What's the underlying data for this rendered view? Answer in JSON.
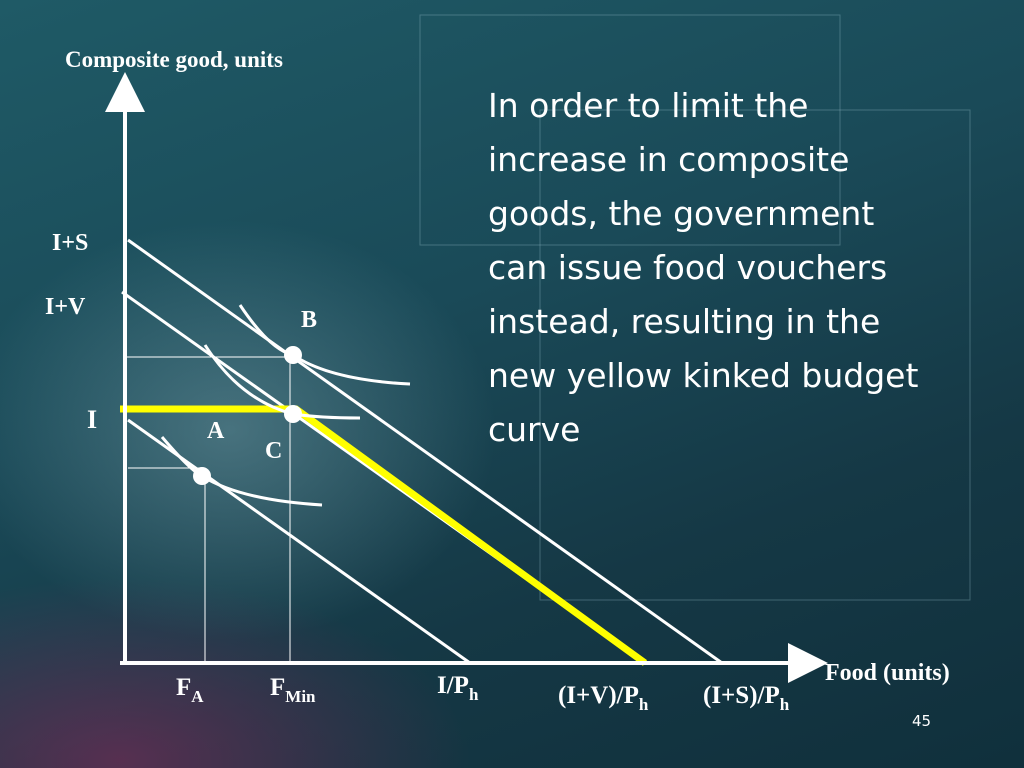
{
  "slide": {
    "y_axis_label": "Composite good, units",
    "x_axis_label": "Food (units)",
    "budget_labels": {
      "i_plus_s": "I+S",
      "i_plus_v": "I+V",
      "i": "I"
    },
    "points": {
      "b": "B",
      "a": "A",
      "c": "C"
    },
    "x_labels": [
      {
        "main": "F",
        "sub": "A"
      },
      {
        "main": "F",
        "sub": "Min"
      },
      {
        "main": "I/P",
        "sub": "h"
      },
      {
        "main": "(I+V)/P",
        "sub": "h"
      },
      {
        "main": "(I+S)/P",
        "sub": "h"
      }
    ],
    "body_lines": [
      "In order to limit the",
      "increase in composite",
      "goods, the government",
      "can issue food vouchers",
      "instead, resulting in the",
      "new yellow kinked budget",
      "curve"
    ],
    "page_number": "45"
  }
}
